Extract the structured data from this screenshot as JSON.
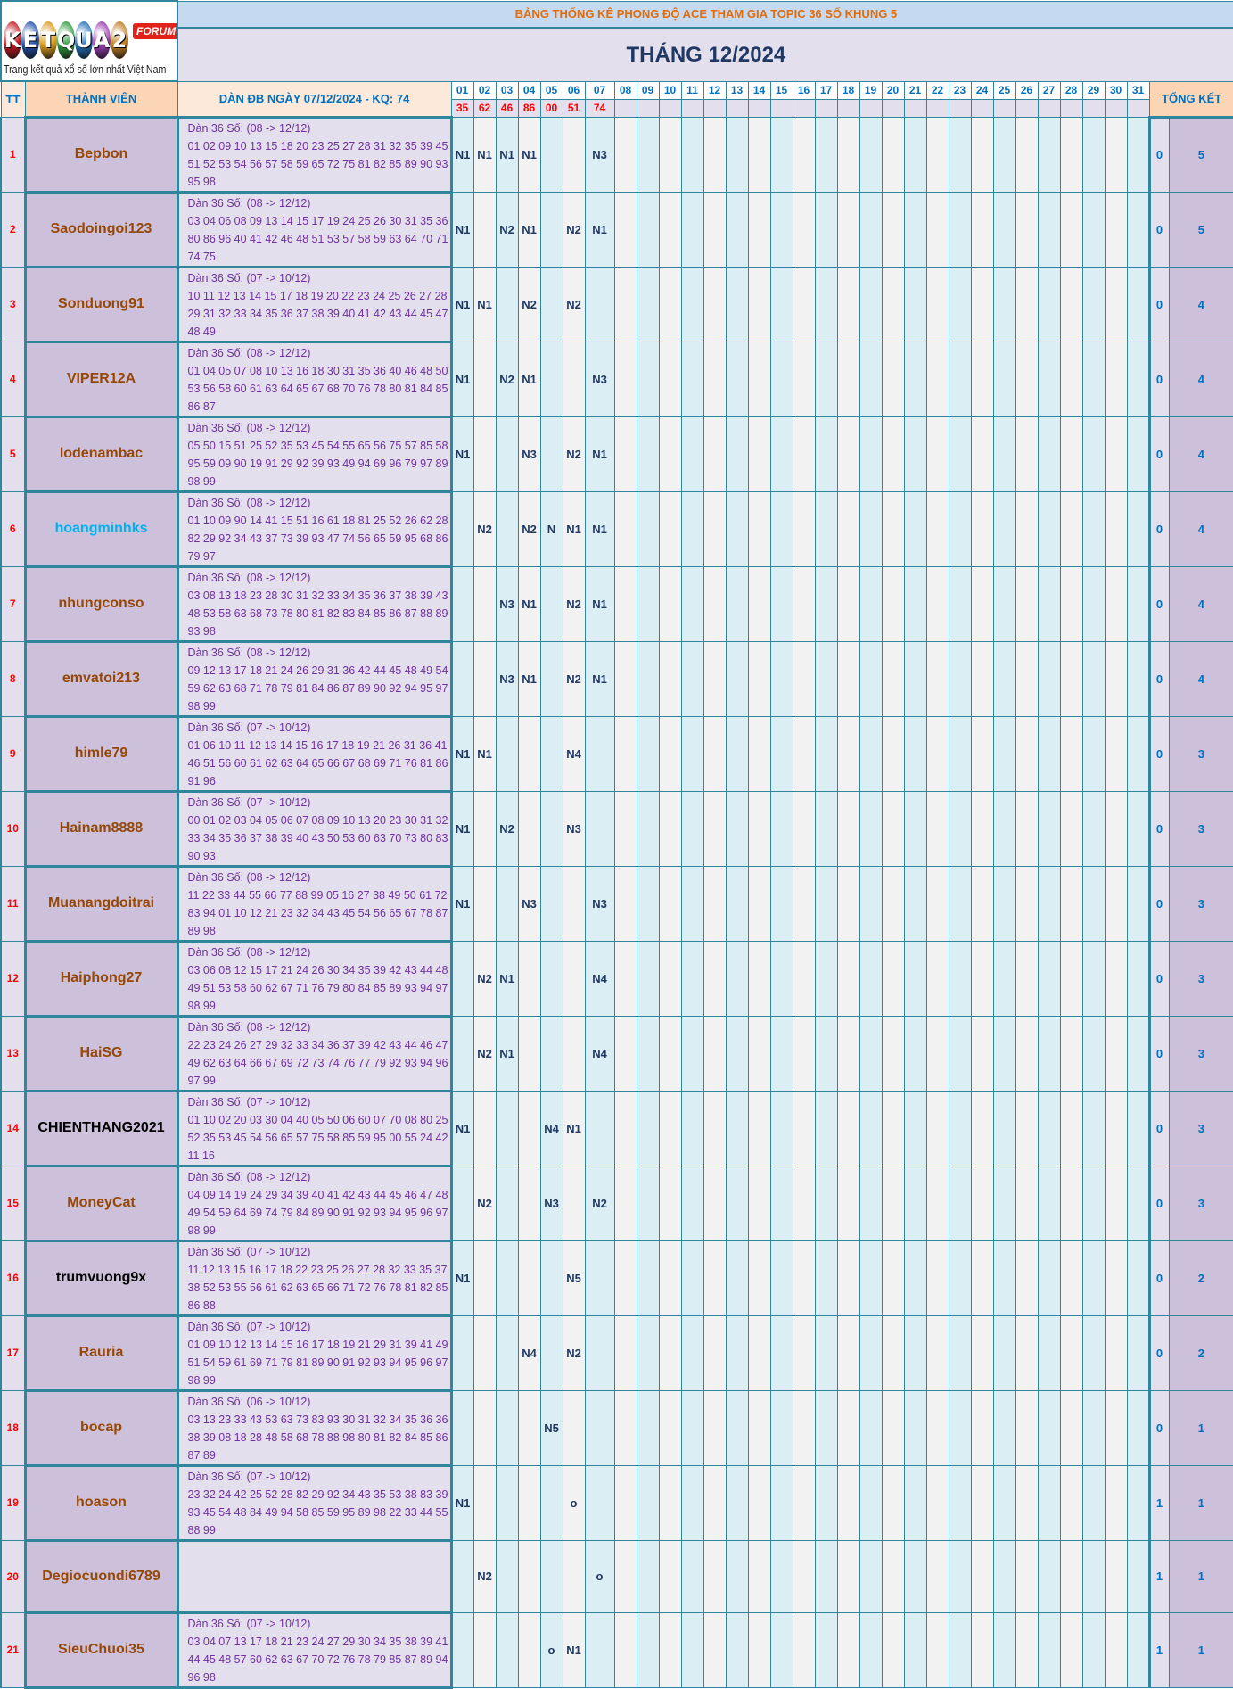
{
  "logo": {
    "text": "KETQUA2",
    "badge": "FORUM",
    "tagline": "Trang kết quả xổ số lớn nhất Việt Nam",
    "ball_colors": [
      "#c0181f",
      "#1f4fa8",
      "#d69a1a",
      "#2a9a3a",
      "#1f6fb8",
      "#9a3ab0",
      "#c07a20"
    ]
  },
  "header": {
    "title": "BẢNG THỐNG KÊ PHONG ĐỘ ACE THAM GIA TOPIC 36 SỐ KHUNG 5",
    "month": "THÁNG 12/2024",
    "tt": "TT",
    "member": "THÀNH VIÊN",
    "dan": "DÀN ĐB NGÀY 07/12/2024 - KQ: 74",
    "summary": "TỔNG KẾT",
    "days": [
      "01",
      "02",
      "03",
      "04",
      "05",
      "06",
      "07",
      "08",
      "09",
      "10",
      "11",
      "12",
      "13",
      "14",
      "15",
      "16",
      "17",
      "18",
      "19",
      "20",
      "21",
      "22",
      "23",
      "24",
      "25",
      "26",
      "27",
      "28",
      "29",
      "30",
      "31"
    ],
    "results": [
      "35",
      "62",
      "46",
      "86",
      "00",
      "51",
      "74"
    ]
  },
  "colors": {
    "border": "#31859c",
    "odd_col": "#daeef3",
    "even_col": "#f2f2f2",
    "mark": "#1f3864",
    "result": "#ff0000"
  },
  "rows": [
    {
      "tt": "1",
      "name": "Bepbon",
      "name_color": "#974706",
      "dan_header": "Dàn 36 Số: (08 -> 12/12)",
      "dan_numbers": "01 02 09 10 13 15 18 20 23 25 27 28 31 32 35 39 45 51 52 53 54 56 57 58 59 65 72 75 81 82 85 89 90 93 95 98",
      "marks": [
        "N1",
        "N1",
        "N1",
        "N1",
        "",
        "",
        "N3"
      ],
      "s1": "0",
      "s2": "5"
    },
    {
      "tt": "2",
      "name": "Saodoingoi123",
      "name_color": "#974706",
      "dan_header": "Dàn 36 Số: (08 -> 12/12)",
      "dan_numbers": "03 04 06 08 09 13 14 15 17 19 24 25 26 30 31 35 36 80 86 96 40 41 42 46 48 51 53 57 58 59 63 64 70 71 74 75",
      "marks": [
        "N1",
        "",
        "N2",
        "N1",
        "",
        "N2",
        "N1"
      ],
      "s1": "0",
      "s2": "5"
    },
    {
      "tt": "3",
      "name": "Sonduong91",
      "name_color": "#974706",
      "dan_header": "Dàn 36 Số: (07 -> 10/12)",
      "dan_numbers": "10 11 12 13 14 15 17 18 19 20 22 23 24 25 26 27 28 29 31 32 33 34 35 36 37 38 39 40 41 42 43 44 45 47 48 49",
      "marks": [
        "N1",
        "N1",
        "",
        "N2",
        "",
        "N2",
        ""
      ],
      "s1": "0",
      "s2": "4"
    },
    {
      "tt": "4",
      "name": "VIPER12A",
      "name_color": "#974706",
      "dan_header": "Dàn 36 Số: (08 -> 12/12)",
      "dan_numbers": "01 04 05 07 08 10 13 16 18 30 31 35 36 40 46 48 50 53 56 58 60 61 63 64 65 67 68 70 76 78 80 81 84 85 86 87",
      "marks": [
        "N1",
        "",
        "N2",
        "N1",
        "",
        "",
        "N3"
      ],
      "s1": "0",
      "s2": "4"
    },
    {
      "tt": "5",
      "name": "lodenambac",
      "name_color": "#974706",
      "dan_header": "Dàn 36 Số: (08 -> 12/12)",
      "dan_numbers": "05 50 15 51 25 52 35 53 45 54 55 65 56 75 57 85 58 95 59 09 90 19 91 29 92 39 93 49 94 69 96 79 97 89 98 99",
      "marks": [
        "N1",
        "",
        "",
        "N3",
        "",
        "N2",
        "N1"
      ],
      "s1": "0",
      "s2": "4"
    },
    {
      "tt": "6",
      "name": "hoangminhks",
      "name_color": "#00b0f0",
      "dan_header": "Dàn 36 Số: (08 -> 12/12)",
      "dan_numbers": "01 10 09 90 14 41 15 51 16 61 18 81 25 52 26 62 28 82 29 92 34 43 37 73 39 93 47 74 56 65 59 95 68 86 79 97",
      "marks": [
        "",
        "N2",
        "",
        "N2",
        "N",
        "N1",
        "N1"
      ],
      "s1": "0",
      "s2": "4"
    },
    {
      "tt": "7",
      "name": "nhungconso",
      "name_color": "#974706",
      "dan_header": "Dàn 36 Số: (08 -> 12/12)",
      "dan_numbers": "03 08 13 18 23 28 30 31 32 33 34 35 36 37 38 39 43 48 53 58 63 68 73 78 80 81 82 83 84 85 86 87 88 89 93 98",
      "marks": [
        "",
        "",
        "N3",
        "N1",
        "",
        "N2",
        "N1"
      ],
      "s1": "0",
      "s2": "4"
    },
    {
      "tt": "8",
      "name": "emvatoi213",
      "name_color": "#974706",
      "dan_header": "Dàn 36 Số: (08 -> 12/12)",
      "dan_numbers": "09 12 13 17 18 21 24 26 29 31 36 42 44 45 48 49 54 59 62 63 68 71 78 79 81 84 86 87 89 90 92 94 95 97 98 99",
      "marks": [
        "",
        "",
        "N3",
        "N1",
        "",
        "N2",
        "N1"
      ],
      "s1": "0",
      "s2": "4"
    },
    {
      "tt": "9",
      "name": "himle79",
      "name_color": "#974706",
      "dan_header": "Dàn 36 Số: (07 -> 10/12)",
      "dan_numbers": "01 06 10 11 12 13 14 15 16 17 18 19 21 26 31 36 41 46 51 56 60 61 62 63 64 65 66 67 68 69 71 76 81 86 91 96",
      "marks": [
        "N1",
        "N1",
        "",
        "",
        "",
        "N4",
        ""
      ],
      "s1": "0",
      "s2": "3"
    },
    {
      "tt": "10",
      "name": "Hainam8888",
      "name_color": "#974706",
      "dan_header": "Dàn 36 Số: (07 -> 10/12)",
      "dan_numbers": "00 01 02 03 04 05 06 07 08 09 10 13 20 23 30 31 32 33 34 35 36 37 38 39 40 43 50 53 60 63 70 73 80 83 90 93",
      "marks": [
        "N1",
        "",
        "N2",
        "",
        "",
        "N3",
        ""
      ],
      "s1": "0",
      "s2": "3"
    },
    {
      "tt": "11",
      "name": "Muanangdoitrai",
      "name_color": "#974706",
      "dan_header": "Dàn 36 Số: (08 -> 12/12)",
      "dan_numbers": "11 22 33 44 55 66 77 88 99 05 16 27 38 49 50 61 72 83 94 01 10 12 21 23 32 34 43 45 54 56 65 67 78 87 89 98",
      "marks": [
        "N1",
        "",
        "",
        "N3",
        "",
        "",
        "N3"
      ],
      "s1": "0",
      "s2": "3"
    },
    {
      "tt": "12",
      "name": "Haiphong27",
      "name_color": "#974706",
      "dan_header": "Dàn 36 Số: (08 -> 12/12)",
      "dan_numbers": "03 06 08 12 15 17 21 24 26 30 34 35 39 42 43 44 48 49 51 53 58 60 62 67 71 76 79 80 84 85 89 93 94 97 98 99",
      "marks": [
        "",
        "N2",
        "N1",
        "",
        "",
        "",
        "N4"
      ],
      "s1": "0",
      "s2": "3"
    },
    {
      "tt": "13",
      "name": "HaiSG",
      "name_color": "#974706",
      "dan_header": "Dàn 36 Số: (08 -> 12/12)",
      "dan_numbers": "22 23 24 26 27 29 32 33 34 36 37 39 42 43 44 46 47 49 62 63 64 66 67 69 72 73 74 76 77 79 92 93 94 96 97 99",
      "marks": [
        "",
        "N2",
        "N1",
        "",
        "",
        "",
        "N4"
      ],
      "s1": "0",
      "s2": "3"
    },
    {
      "tt": "14",
      "name": "CHIENTHANG2021",
      "name_color": "#000000",
      "dan_header": "Dàn 36 Số: (07 -> 10/12)",
      "dan_numbers": "01 10 02 20 03 30 04 40 05 50 06 60 07 70 08 80 25 52 35 53 45 54 56 65 57 75 58 85 59 95 00 55 24 42 11 16",
      "marks": [
        "N1",
        "",
        "",
        "",
        "N4",
        "N1",
        ""
      ],
      "s1": "0",
      "s2": "3"
    },
    {
      "tt": "15",
      "name": "MoneyCat",
      "name_color": "#974706",
      "dan_header": "Dàn 36 Số: (08 -> 12/12)",
      "dan_numbers": "04 09 14 19 24 29 34 39 40 41 42 43 44 45 46 47 48 49 54 59 64 69 74 79 84 89 90 91 92 93 94 95 96 97 98 99",
      "marks": [
        "",
        "N2",
        "",
        "",
        "N3",
        "",
        "N2"
      ],
      "s1": "0",
      "s2": "3"
    },
    {
      "tt": "16",
      "name": "trumvuong9x",
      "name_color": "#000000",
      "dan_header": "Dàn 36 Số: (07 -> 10/12)",
      "dan_numbers": "11 12 13 15 16 17 18 22 23 25 26 27 28 32 33 35 37 38 52 53 55 56 61 62 63 65 66 71 72 76 78 81 82 85 86 88",
      "marks": [
        "N1",
        "",
        "",
        "",
        "",
        "N5",
        ""
      ],
      "s1": "0",
      "s2": "2"
    },
    {
      "tt": "17",
      "name": "Rauria",
      "name_color": "#974706",
      "dan_header": "Dàn 36 Số: (07 -> 10/12)",
      "dan_numbers": "01 09 10 12 13 14 15 16 17 18 19 21 29 31 39 41 49 51 54 59 61 69 71 79 81 89 90 91 92 93 94 95 96 97 98 99",
      "marks": [
        "",
        "",
        "",
        "N4",
        "",
        "N2",
        ""
      ],
      "s1": "0",
      "s2": "2"
    },
    {
      "tt": "18",
      "name": "bocap",
      "name_color": "#974706",
      "dan_header": "Dàn 36 Số: (06 -> 10/12)",
      "dan_numbers": "03 13 23 33 43 53 63 73 83 93 30 31 32 34 35 36 36 38 39 08 18 28 48 58 68 78 88 98 80 81 82 84 85 86 87 89",
      "marks": [
        "",
        "",
        "",
        "",
        "N5",
        "",
        ""
      ],
      "s1": "0",
      "s2": "1"
    },
    {
      "tt": "19",
      "name": "hoason",
      "name_color": "#974706",
      "dan_header": "Dàn 36 Số: (07 -> 10/12)",
      "dan_numbers": "23 32 24 42 25 52 28 82 29 92 34 43 35 53 38 83 39 93 45 54 48 84 49 94 58 85 59 95 89 98 22 33 44 55 88 99",
      "marks": [
        "N1",
        "",
        "",
        "",
        "",
        "o",
        ""
      ],
      "s1": "1",
      "s2": "1"
    },
    {
      "tt": "20",
      "name": "Degiocuondi6789",
      "name_color": "#974706",
      "dan_header": "",
      "dan_numbers": "",
      "marks": [
        "",
        "N2",
        "",
        "",
        "",
        "",
        "o"
      ],
      "s1": "1",
      "s2": "1"
    },
    {
      "tt": "21",
      "name": "SieuChuoi35",
      "name_color": "#974706",
      "dan_header": "Dàn 36 Số: (07 -> 10/12)",
      "dan_numbers": "03 04 07 13 17 18 21 23 24 27 29 30 34 35 38 39 41 44 45 48 57 60 62 63 67 70 72 76 78 79 85 87 89 94 96 98",
      "marks": [
        "",
        "",
        "",
        "",
        "o",
        "N1",
        ""
      ],
      "s1": "1",
      "s2": "1"
    }
  ]
}
